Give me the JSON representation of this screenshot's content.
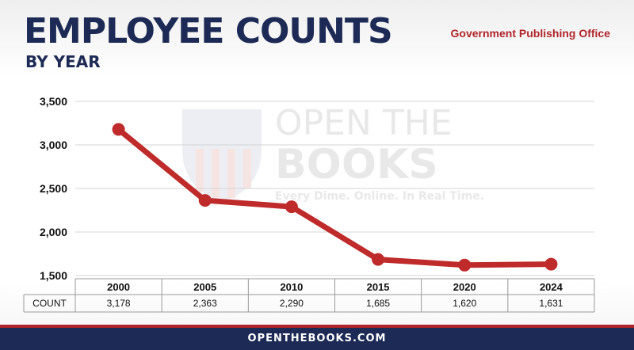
{
  "header": {
    "title": "EMPLOYEE COUNTS",
    "subtitle": "BY YEAR",
    "agency": "Government Publishing Office"
  },
  "watermark": {
    "line1": "OPEN THE",
    "line2": "BOOKS",
    "line3": "Every Dime. Online. In Real Time."
  },
  "footer": {
    "text": "OPENTHEBOOKS.COM"
  },
  "colors": {
    "navy": "#1c2a55",
    "red": "#b0252a",
    "line": "#bf2a2a"
  },
  "chart_data": {
    "type": "line",
    "categories": [
      "2000",
      "2005",
      "2010",
      "2015",
      "2020",
      "2024"
    ],
    "series": [
      {
        "values": [
          3178,
          2363,
          2290,
          1685,
          1620,
          1631
        ]
      }
    ],
    "table": {
      "row_label": "COUNT",
      "cells": [
        "3,178",
        "2,363",
        "2,290",
        "1,685",
        "1,620",
        "1,631"
      ]
    },
    "y_ticks": [
      "1,500",
      "2,000",
      "2,500",
      "3,000",
      "3,500"
    ],
    "y_tick_values": [
      1500,
      2000,
      2500,
      3000,
      3500
    ],
    "ylim": [
      1500,
      3500
    ],
    "grid": true
  }
}
